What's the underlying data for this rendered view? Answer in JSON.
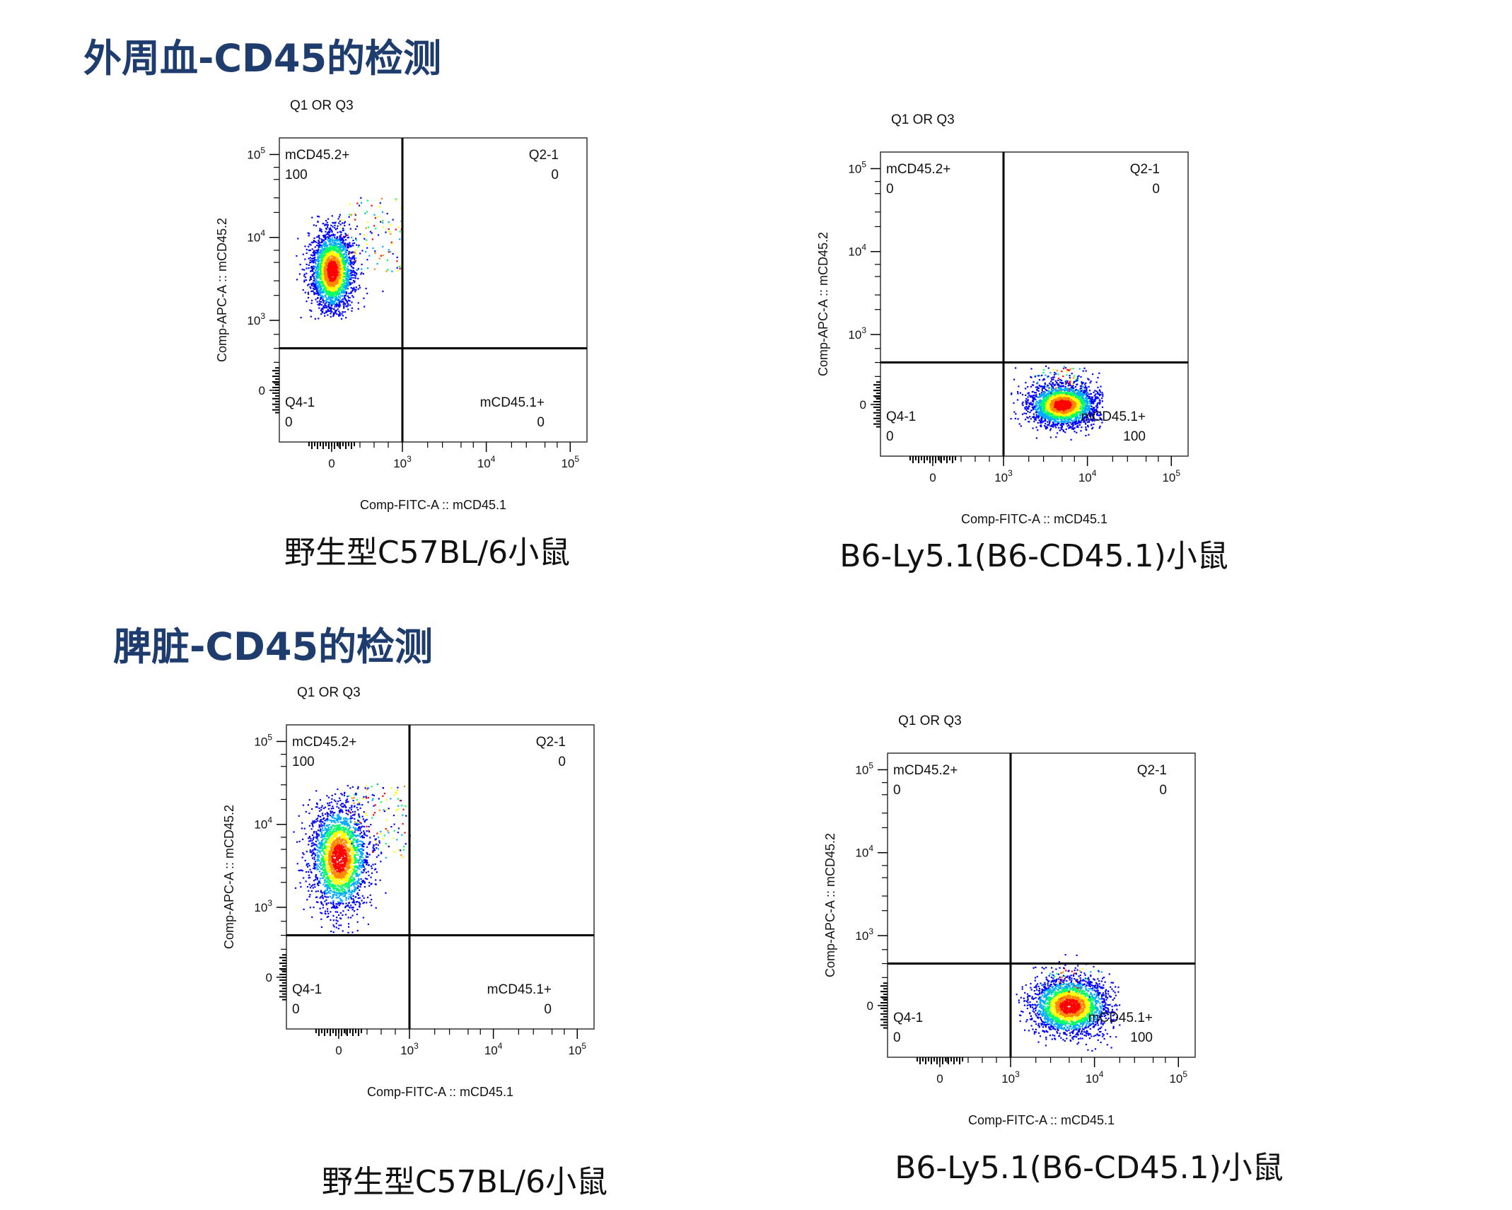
{
  "sections": [
    {
      "title": "外周血-CD45的检测"
    },
    {
      "title": "脾脏-CD45的检测"
    }
  ],
  "colors": {
    "title": "#1f3c6e",
    "density_scale": [
      "#0000ff",
      "#00aaff",
      "#00ff66",
      "#ffff00",
      "#ff8800",
      "#ff0000"
    ]
  },
  "chart_data": [
    {
      "type": "scatter",
      "subtype": "flow-cytometry-density",
      "section": "外周血-CD45的检测",
      "gate_title": "Q1 OR Q3",
      "caption": "野生型C57BL/6小鼠",
      "xlabel": "Comp-FITC-A :: mCD45.1",
      "ylabel": "Comp-APC-A :: mCD45.2",
      "x_ticks": [
        {
          "label": "0",
          "value": 0
        },
        {
          "label": "10",
          "sup": "3",
          "value": 1000
        },
        {
          "label": "10",
          "sup": "4",
          "value": 10000
        },
        {
          "label": "10",
          "sup": "5",
          "value": 100000
        }
      ],
      "y_ticks": [
        {
          "label": "0",
          "value": 0
        },
        {
          "label": "10",
          "sup": "3",
          "value": 1000
        },
        {
          "label": "10",
          "sup": "4",
          "value": 10000
        },
        {
          "label": "10",
          "sup": "5",
          "value": 100000
        }
      ],
      "scale": "biexponential",
      "gate": {
        "x": 1000,
        "y": 600
      },
      "quadrants": {
        "Q1": {
          "name": "mCD45.2+",
          "value": "100"
        },
        "Q2": {
          "name": "Q2-1",
          "value": "0"
        },
        "Q3": {
          "name": "mCD45.1+",
          "value": "0"
        },
        "Q4": {
          "name": "Q4-1",
          "value": "0"
        }
      },
      "population": {
        "x_center": 0,
        "x_spread": 150,
        "y_center": 4000,
        "y_range": [
          1300,
          20000
        ],
        "location": "Q1"
      }
    },
    {
      "type": "scatter",
      "subtype": "flow-cytometry-density",
      "section": "外周血-CD45的检测",
      "gate_title": "Q1 OR Q3",
      "caption": "B6-Ly5.1(B6-CD45.1)小鼠",
      "xlabel": "Comp-FITC-A :: mCD45.1",
      "ylabel": "Comp-APC-A :: mCD45.2",
      "x_ticks": [
        {
          "label": "0",
          "value": 0
        },
        {
          "label": "10",
          "sup": "3",
          "value": 1000
        },
        {
          "label": "10",
          "sup": "4",
          "value": 10000
        },
        {
          "label": "10",
          "sup": "5",
          "value": 100000
        }
      ],
      "y_ticks": [
        {
          "label": "0",
          "value": 0
        },
        {
          "label": "10",
          "sup": "3",
          "value": 1000
        },
        {
          "label": "10",
          "sup": "4",
          "value": 10000
        },
        {
          "label": "10",
          "sup": "5",
          "value": 100000
        }
      ],
      "scale": "biexponential",
      "gate": {
        "x": 1000,
        "y": 600
      },
      "quadrants": {
        "Q1": {
          "name": "mCD45.2+",
          "value": "0"
        },
        "Q2": {
          "name": "Q2-1",
          "value": "0"
        },
        "Q3": {
          "name": "mCD45.1+",
          "value": "100"
        },
        "Q4": {
          "name": "Q4-1",
          "value": "0"
        }
      },
      "population": {
        "x_center": 5000,
        "x_range": [
          1200,
          15000
        ],
        "y_center": 0,
        "y_spread": 150,
        "location": "Q3"
      }
    },
    {
      "type": "scatter",
      "subtype": "flow-cytometry-density",
      "section": "脾脏-CD45的检测",
      "gate_title": "Q1 OR Q3",
      "caption": "野生型C57BL/6小鼠",
      "xlabel": "Comp-FITC-A :: mCD45.1",
      "ylabel": "Comp-APC-A :: mCD45.2",
      "x_ticks": [
        {
          "label": "0",
          "value": 0
        },
        {
          "label": "10",
          "sup": "3",
          "value": 1000
        },
        {
          "label": "10",
          "sup": "4",
          "value": 10000
        },
        {
          "label": "10",
          "sup": "5",
          "value": 100000
        }
      ],
      "y_ticks": [
        {
          "label": "0",
          "value": 0
        },
        {
          "label": "10",
          "sup": "3",
          "value": 1000
        },
        {
          "label": "10",
          "sup": "4",
          "value": 10000
        },
        {
          "label": "10",
          "sup": "5",
          "value": 100000
        }
      ],
      "scale": "biexponential",
      "gate": {
        "x": 1000,
        "y": 600
      },
      "quadrants": {
        "Q1": {
          "name": "mCD45.2+",
          "value": "100"
        },
        "Q2": {
          "name": "Q2-1",
          "value": "0"
        },
        "Q3": {
          "name": "mCD45.1+",
          "value": "0"
        },
        "Q4": {
          "name": "Q4-1",
          "value": "0"
        }
      },
      "population": {
        "x_center": 0,
        "x_spread": 200,
        "y_center": 4000,
        "y_range": [
          800,
          30000
        ],
        "location": "Q1"
      }
    },
    {
      "type": "scatter",
      "subtype": "flow-cytometry-density",
      "section": "脾脏-CD45的检测",
      "gate_title": "Q1 OR Q3",
      "caption": "B6-Ly5.1(B6-CD45.1)小鼠",
      "xlabel": "Comp-FITC-A :: mCD45.1",
      "ylabel": "Comp-APC-A :: mCD45.2",
      "x_ticks": [
        {
          "label": "0",
          "value": 0
        },
        {
          "label": "10",
          "sup": "3",
          "value": 1000
        },
        {
          "label": "10",
          "sup": "4",
          "value": 10000
        },
        {
          "label": "10",
          "sup": "5",
          "value": 100000
        }
      ],
      "y_ticks": [
        {
          "label": "0",
          "value": 0
        },
        {
          "label": "10",
          "sup": "3",
          "value": 1000
        },
        {
          "label": "10",
          "sup": "4",
          "value": 10000
        },
        {
          "label": "10",
          "sup": "5",
          "value": 100000
        }
      ],
      "scale": "biexponential",
      "gate": {
        "x": 1000,
        "y": 600
      },
      "quadrants": {
        "Q1": {
          "name": "mCD45.2+",
          "value": "0"
        },
        "Q2": {
          "name": "Q2-1",
          "value": "0"
        },
        "Q3": {
          "name": "mCD45.1+",
          "value": "100"
        },
        "Q4": {
          "name": "Q4-1",
          "value": "0"
        }
      },
      "population": {
        "x_center": 5000,
        "x_range": [
          1100,
          20000
        ],
        "y_center": 0,
        "y_spread": 200,
        "location": "Q3"
      }
    }
  ]
}
